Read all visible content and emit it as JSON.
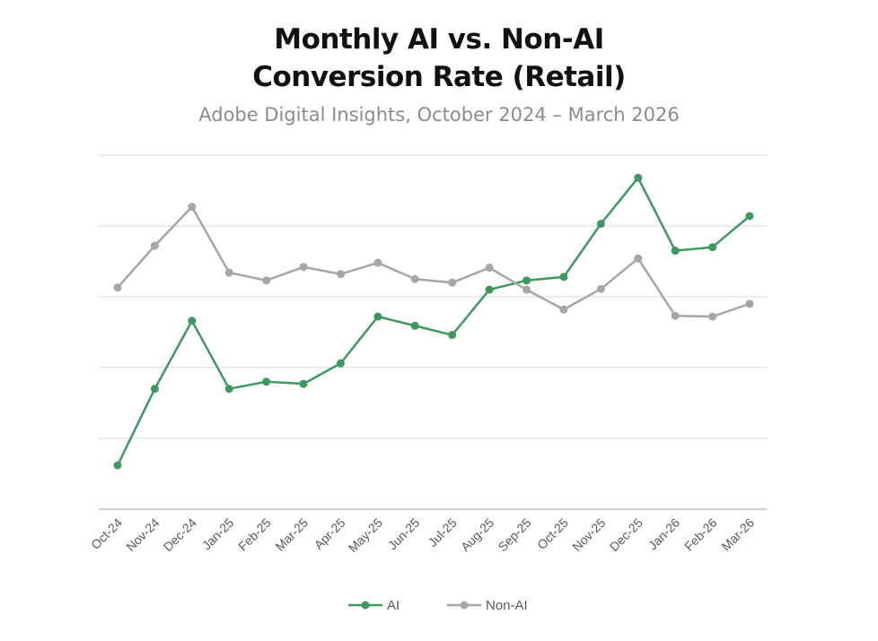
{
  "chart_data": {
    "type": "line",
    "title_line1": "Monthly AI vs. Non-AI",
    "title_line2": "Conversion Rate (Retail)",
    "subtitle": "Adobe Digital Insights, October 2024 – March 2026",
    "xlabel": "",
    "ylabel": "",
    "y_axis_labels_shown": false,
    "ylim": [
      0,
      5
    ],
    "grid": true,
    "legend_position": "bottom",
    "categories": [
      "Oct-24",
      "Nov-24",
      "Dec-24",
      "Jan-25",
      "Feb-25",
      "Mar-25",
      "Apr-25",
      "May-25",
      "Jun-25",
      "Jul-25",
      "Aug-25",
      "Sep-25",
      "Oct-25",
      "Nov-25",
      "Dec-25",
      "Jan-26",
      "Feb-26",
      "Mar-26"
    ],
    "series": [
      {
        "name": "AI",
        "color": "#3d9a5f",
        "values": [
          0.62,
          1.7,
          2.66,
          1.7,
          1.8,
          1.77,
          2.06,
          2.72,
          2.59,
          2.46,
          3.1,
          3.23,
          3.28,
          4.03,
          4.68,
          3.65,
          3.7,
          4.14
        ]
      },
      {
        "name": "Non-AI",
        "color": "#a6a6a6",
        "values": [
          3.13,
          3.72,
          4.27,
          3.34,
          3.23,
          3.42,
          3.32,
          3.48,
          3.25,
          3.2,
          3.41,
          3.1,
          2.82,
          3.11,
          3.54,
          2.73,
          2.72,
          2.9
        ]
      }
    ]
  }
}
